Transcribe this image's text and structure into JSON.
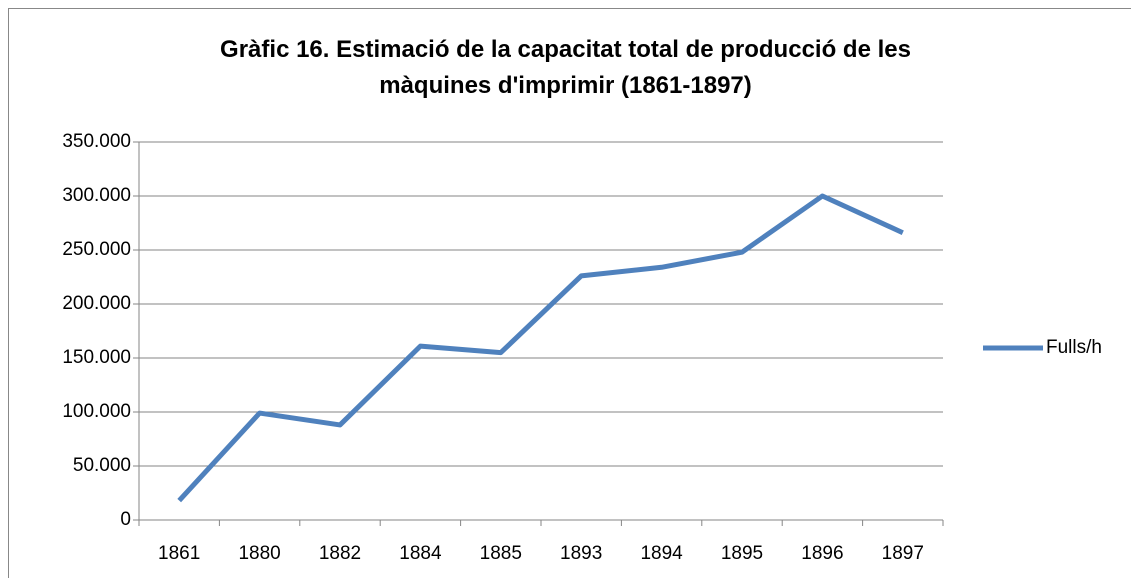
{
  "chart_data": {
    "type": "line",
    "title": "Gràfic 16. Estimació de la capacitat total de producció de les\nmàquines d'imprimir (1861-1897)",
    "categories": [
      "1861",
      "1880",
      "1882",
      "1884",
      "1885",
      "1893",
      "1894",
      "1895",
      "1896",
      "1897"
    ],
    "series": [
      {
        "name": "Fulls/h",
        "color": "#4f81bd",
        "values": [
          18000,
          99000,
          88000,
          161000,
          155000,
          226000,
          234000,
          248000,
          300000,
          266000
        ]
      }
    ],
    "ylim": [
      0,
      350000
    ],
    "yticks": [
      0,
      {
        "value": 50000,
        "label": "50.000"
      },
      {
        "value": 100000,
        "label": "100.000"
      },
      {
        "value": 150000,
        "label": "150.000"
      },
      {
        "value": 200000,
        "label": "200.000"
      },
      {
        "value": 250000,
        "label": "250.000"
      },
      {
        "value": 300000,
        "label": "300.000"
      },
      {
        "value": 350000,
        "label": "350.000"
      }
    ],
    "grid": true,
    "legend": "right"
  }
}
